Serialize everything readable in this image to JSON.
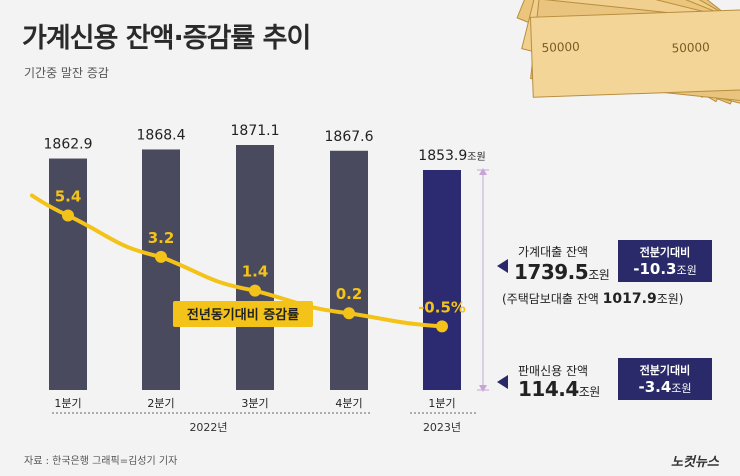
{
  "title": "가계신용 잔액·증감률 추이",
  "subtitle": "기간중 말잔 증감",
  "chart_data": {
    "type": "bar",
    "categories": [
      "1분기",
      "2분기",
      "3분기",
      "4분기",
      "1분기"
    ],
    "years": [
      {
        "label": "2022년",
        "span": [
          0,
          3
        ]
      },
      {
        "label": "2023년",
        "span": [
          4,
          4
        ]
      }
    ],
    "series": [
      {
        "values": [
          1862.9,
          1868.4,
          1871.1,
          1867.6,
          1853.9
        ],
        "labels": [
          "1862.9",
          "1868.4",
          "1871.1",
          "1867.6",
          "1853.9"
        ],
        "last_unit": "조원"
      },
      {
        "name": "전년동기대비 증감률",
        "type": "line",
        "values": [
          5.4,
          3.2,
          1.4,
          0.2,
          -0.5
        ],
        "labels": [
          "5.4",
          "3.2",
          "1.4",
          "0.2",
          "-0.5%"
        ]
      }
    ],
    "colors": {
      "bar": "#4a4a5e",
      "bar_highlight": "#2c2a70",
      "line": "#f3c31a"
    }
  },
  "breakdown": {
    "loans": {
      "label": "가계대출 잔액",
      "value": "1739.5",
      "unit": "조원",
      "change_label": "전분기대비",
      "change_value": "-10.3",
      "change_unit": "조원",
      "sub_label": "(주택담보대출 잔액",
      "sub_value": "1017.9",
      "sub_unit": "조원)"
    },
    "credit": {
      "label": "판매신용 잔액",
      "value": "114.4",
      "unit": "조원",
      "change_label": "전분기대비",
      "change_value": "-3.4",
      "change_unit": "조원"
    }
  },
  "source": "자료 : 한국은행    그래픽=김성기 기자",
  "logo": "노컷뉴스"
}
